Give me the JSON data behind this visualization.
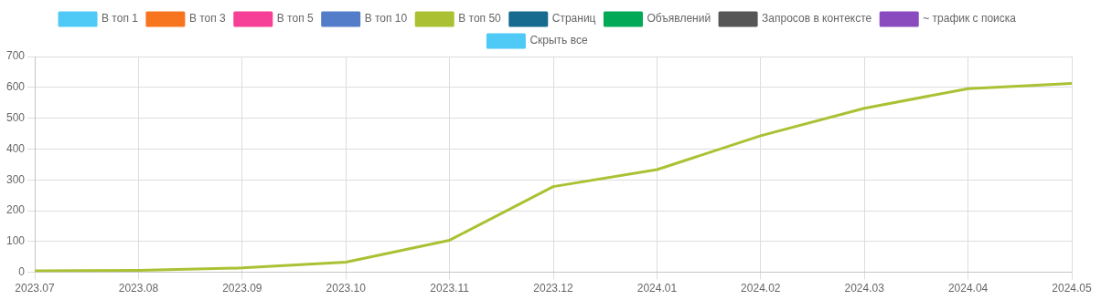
{
  "chart_data": {
    "type": "line",
    "categories": [
      "2023.07",
      "2023.08",
      "2023.09",
      "2023.10",
      "2023.11",
      "2023.12",
      "2024.01",
      "2024.02",
      "2024.03",
      "2024.04",
      "2024.05"
    ],
    "series": [
      {
        "name": "В топ 1",
        "color": "#4fc9f5",
        "values": [
          null,
          null,
          null,
          null,
          null,
          null,
          null,
          null,
          null,
          null,
          null
        ]
      },
      {
        "name": "В топ 3",
        "color": "#f8751f",
        "values": [
          null,
          null,
          null,
          null,
          null,
          null,
          null,
          null,
          null,
          null,
          null
        ]
      },
      {
        "name": "В топ 5",
        "color": "#f63f96",
        "values": [
          null,
          null,
          null,
          null,
          null,
          null,
          null,
          null,
          null,
          null,
          null
        ]
      },
      {
        "name": "В топ 10",
        "color": "#537dc9",
        "values": [
          null,
          null,
          null,
          null,
          null,
          null,
          null,
          null,
          null,
          null,
          null
        ]
      },
      {
        "name": "В топ 50",
        "color": "#abc133",
        "values": [
          5,
          6,
          14,
          33,
          104,
          278,
          333,
          443,
          532,
          596,
          613
        ]
      },
      {
        "name": "Страниц",
        "color": "#176b8f",
        "values": [
          null,
          null,
          null,
          null,
          null,
          null,
          null,
          null,
          null,
          null,
          null
        ]
      },
      {
        "name": "Объявлений",
        "color": "#02a956",
        "values": [
          null,
          null,
          null,
          null,
          null,
          null,
          null,
          null,
          null,
          null,
          null
        ]
      },
      {
        "name": "Запросов в контексте",
        "color": "#565656",
        "values": [
          null,
          null,
          null,
          null,
          null,
          null,
          null,
          null,
          null,
          null,
          null
        ]
      },
      {
        "name": "~ трафик с поиска",
        "color": "#8a4bbf",
        "values": [
          null,
          null,
          null,
          null,
          null,
          null,
          null,
          null,
          null,
          null,
          null
        ]
      },
      {
        "name": "Скрыть все",
        "color": "#4fc9f5",
        "values": [
          null,
          null,
          null,
          null,
          null,
          null,
          null,
          null,
          null,
          null,
          null
        ]
      }
    ],
    "ylim": [
      0,
      700
    ],
    "yticks": [
      0,
      100,
      200,
      300,
      400,
      500,
      600,
      700
    ],
    "grid": true,
    "legend": "top",
    "marker": "none",
    "line_style": "solid"
  }
}
